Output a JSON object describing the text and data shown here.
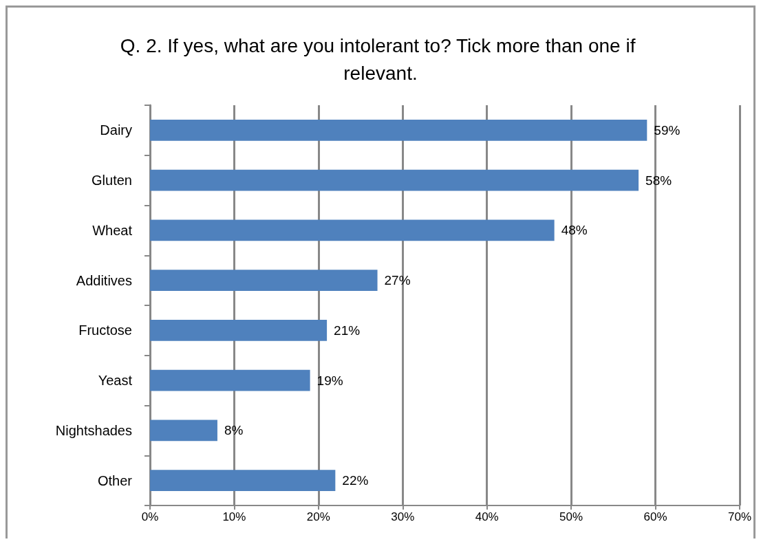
{
  "chart_data": {
    "type": "bar",
    "orientation": "horizontal",
    "title": "Q. 2. If yes, what are you intolerant to? Tick more than one if relevant.",
    "categories": [
      "Dairy",
      "Gluten",
      "Wheat",
      "Additives",
      "Fructose",
      "Yeast",
      "Nightshades",
      "Other"
    ],
    "values": [
      59,
      58,
      48,
      27,
      21,
      19,
      8,
      22
    ],
    "value_labels": [
      "59%",
      "58%",
      "48%",
      "27%",
      "21%",
      "19%",
      "8%",
      "22%"
    ],
    "color": "#4f81bd",
    "xlim": [
      0,
      70
    ],
    "xticks": [
      {
        "value": 0,
        "label": "0%"
      },
      {
        "value": 10,
        "label": "10%"
      },
      {
        "value": 20,
        "label": "20%"
      },
      {
        "value": 30,
        "label": "30%"
      },
      {
        "value": 40,
        "label": "40%"
      },
      {
        "value": 50,
        "label": "50%"
      },
      {
        "value": 60,
        "label": "60%"
      },
      {
        "value": 70,
        "label": "70%"
      }
    ],
    "grid": "x"
  }
}
